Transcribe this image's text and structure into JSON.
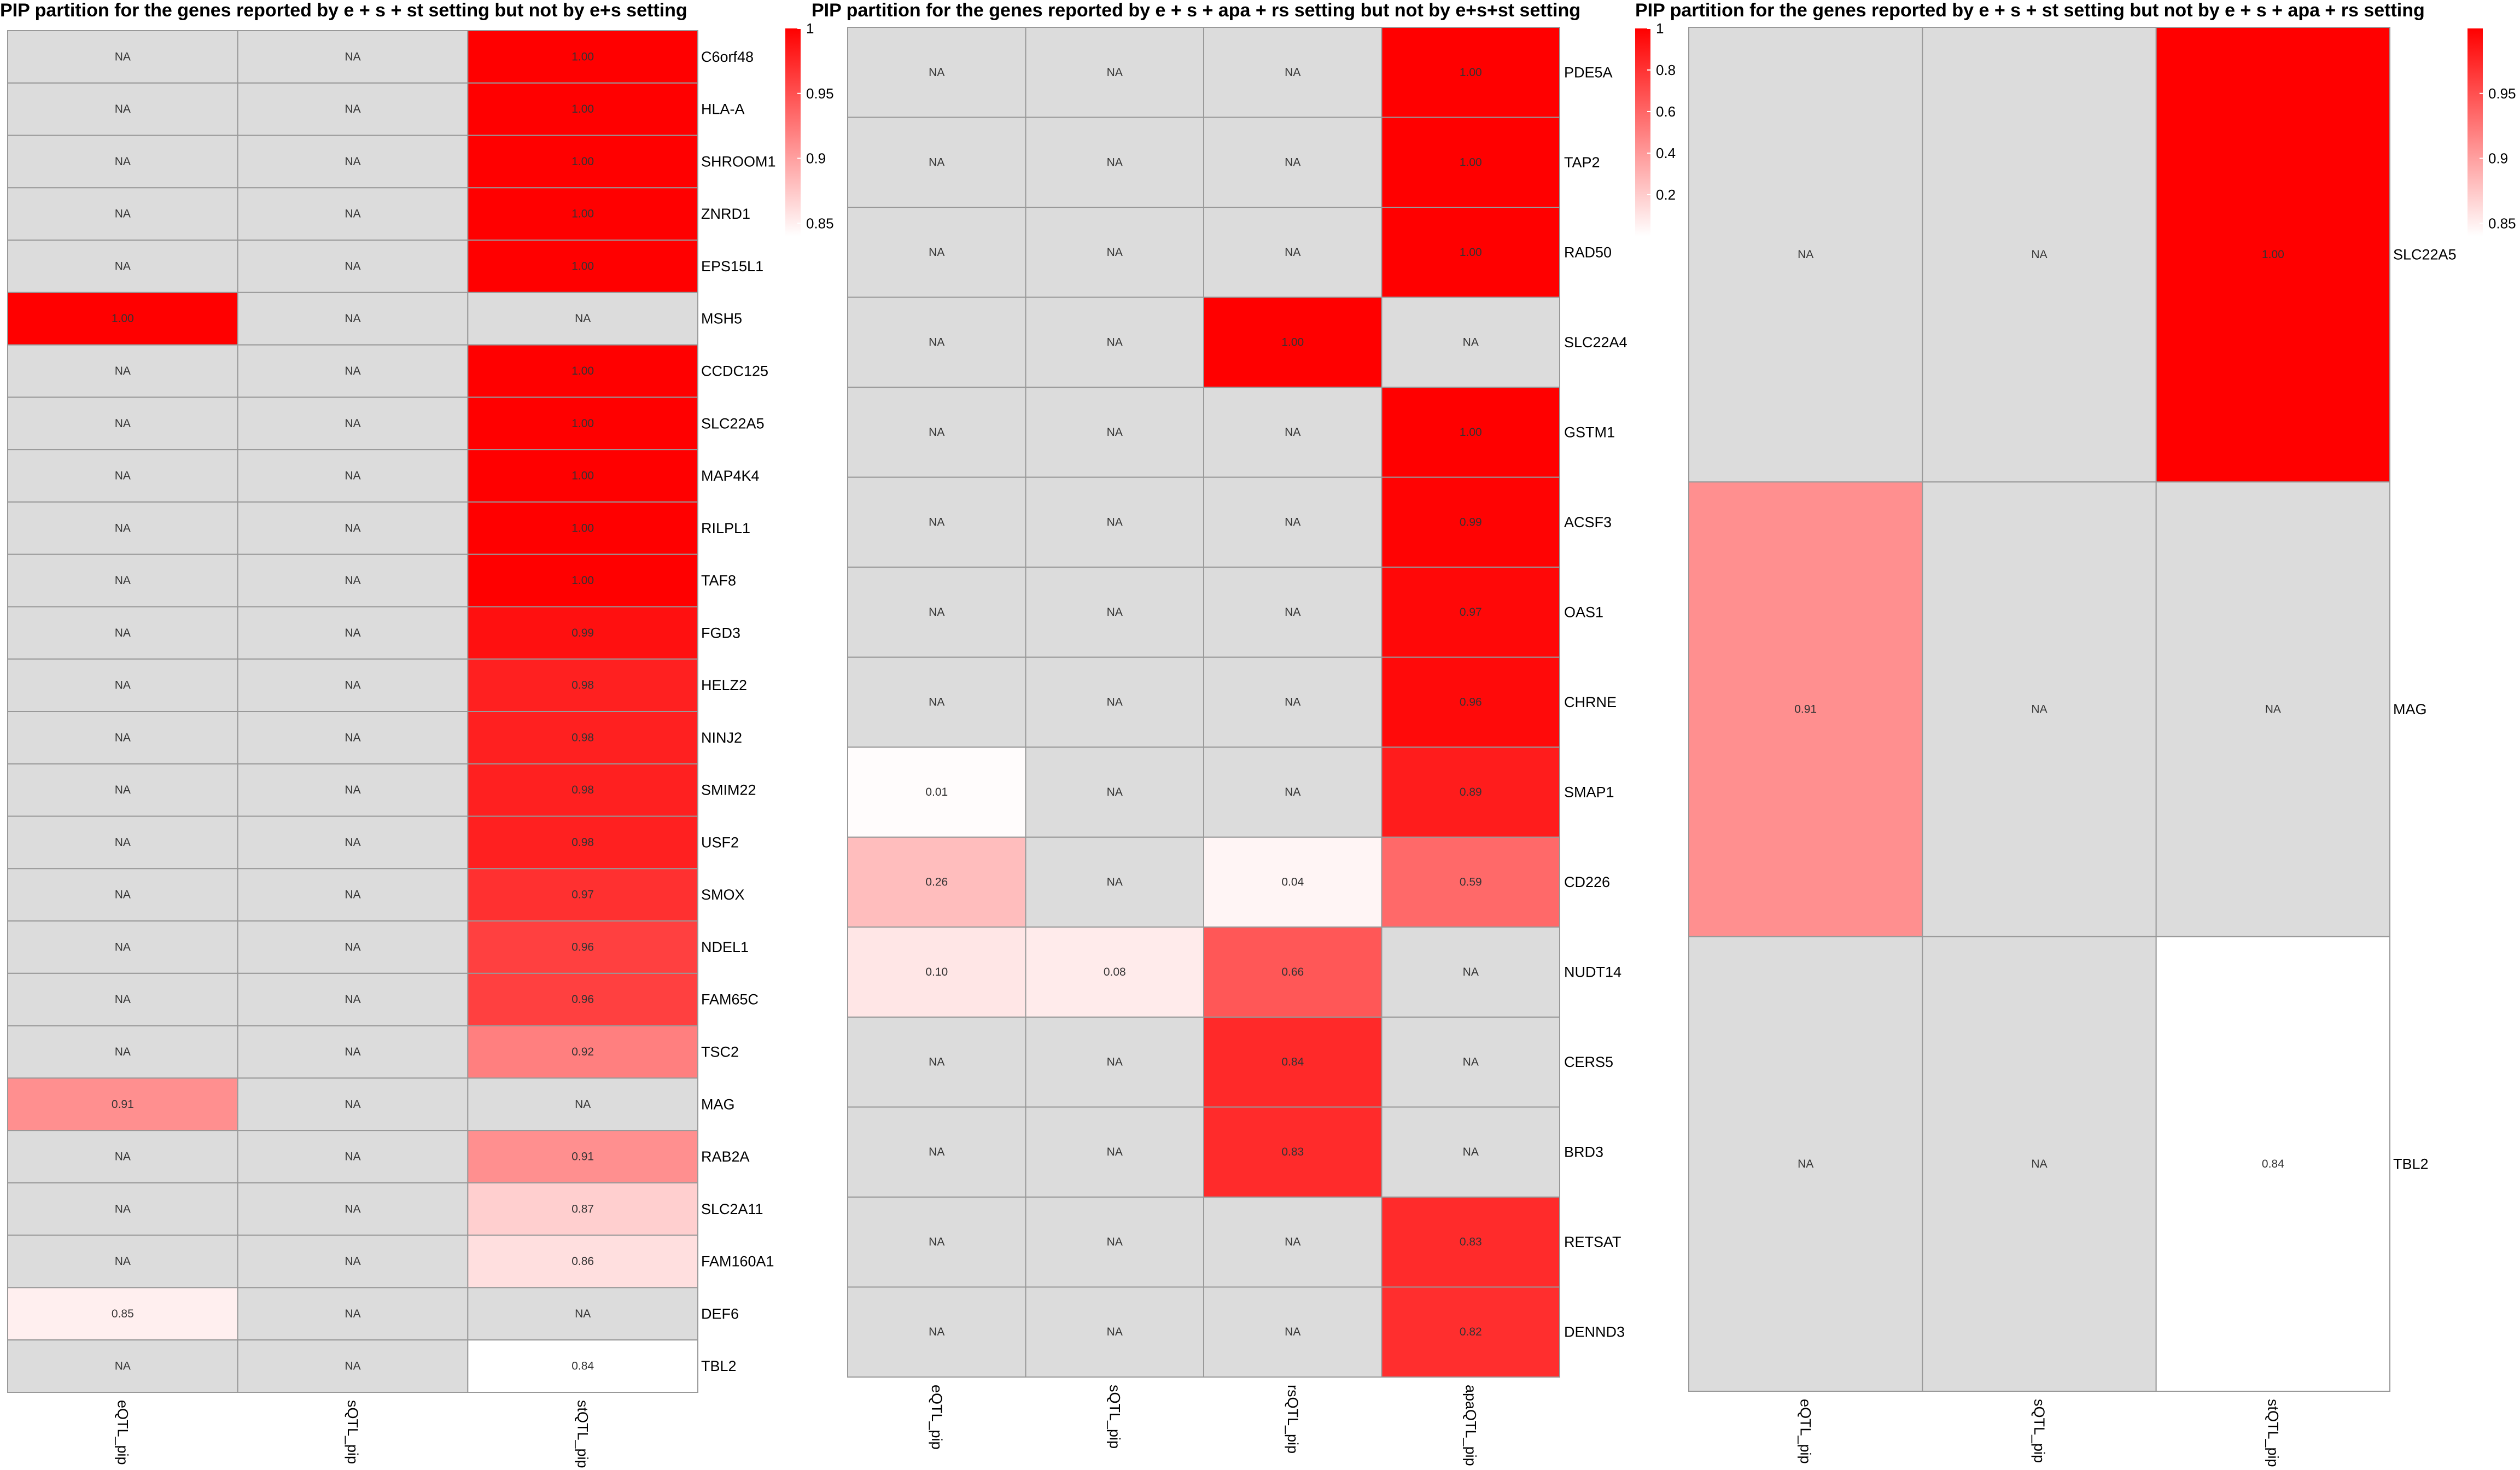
{
  "na_label": "NA",
  "colors": {
    "na": "#dcdcdc",
    "low": "#ffffff",
    "high": "#ff0000",
    "grid": "#999999"
  },
  "chart_data": [
    {
      "type": "heatmap",
      "title": "PIP partition for the genes reported by e + s + st setting but not by e+s setting",
      "columns": [
        "eQTL_pip",
        "sQTL_pip",
        "stQTL_pip"
      ],
      "rows": [
        "C6orf48",
        "HLA-A",
        "SHROOM1",
        "ZNRD1",
        "EPS15L1",
        "MSH5",
        "CCDC125",
        "SLC22A5",
        "MAP4K4",
        "RILPL1",
        "TAF8",
        "FGD3",
        "HELZ2",
        "NINJ2",
        "SMIM22",
        "USF2",
        "SMOX",
        "NDEL1",
        "FAM65C",
        "TSC2",
        "MAG",
        "RAB2A",
        "SLC2A11",
        "FAM160A1",
        "DEF6",
        "TBL2"
      ],
      "values": [
        [
          null,
          null,
          1.0
        ],
        [
          null,
          null,
          1.0
        ],
        [
          null,
          null,
          1.0
        ],
        [
          null,
          null,
          1.0
        ],
        [
          null,
          null,
          1.0
        ],
        [
          1.0,
          null,
          null
        ],
        [
          null,
          null,
          1.0
        ],
        [
          null,
          null,
          1.0
        ],
        [
          null,
          null,
          1.0
        ],
        [
          null,
          null,
          1.0
        ],
        [
          null,
          null,
          1.0
        ],
        [
          null,
          null,
          0.99
        ],
        [
          null,
          null,
          0.98
        ],
        [
          null,
          null,
          0.98
        ],
        [
          null,
          null,
          0.98
        ],
        [
          null,
          null,
          0.98
        ],
        [
          null,
          null,
          0.97
        ],
        [
          null,
          null,
          0.96
        ],
        [
          null,
          null,
          0.96
        ],
        [
          null,
          null,
          0.92
        ],
        [
          0.91,
          null,
          null
        ],
        [
          null,
          null,
          0.91
        ],
        [
          null,
          null,
          0.87
        ],
        [
          null,
          null,
          0.86
        ],
        [
          0.85,
          null,
          null
        ],
        [
          null,
          null,
          0.84
        ]
      ],
      "legend": {
        "min": 0.84,
        "max": 1.0,
        "ticks": [
          0.85,
          0.9,
          0.95,
          1
        ],
        "tick_labels": [
          "0.85",
          "0.9",
          "0.95",
          "1"
        ]
      }
    },
    {
      "type": "heatmap",
      "title": "PIP partition for the genes reported by e + s + apa + rs setting but not by e+s+st setting",
      "columns": [
        "eQTL_pip",
        "sQTL_pip",
        "rsQTL_pip",
        "apaQTL_pip"
      ],
      "rows": [
        "PDE5A",
        "TAP2",
        "RAD50",
        "SLC22A4",
        "GSTM1",
        "ACSF3",
        "OAS1",
        "CHRNE",
        "SMAP1",
        "CD226",
        "NUDT14",
        "CERS5",
        "BRD3",
        "RETSAT",
        "DENND3"
      ],
      "values": [
        [
          null,
          null,
          null,
          1.0
        ],
        [
          null,
          null,
          null,
          1.0
        ],
        [
          null,
          null,
          null,
          1.0
        ],
        [
          null,
          null,
          1.0,
          null
        ],
        [
          null,
          null,
          null,
          1.0
        ],
        [
          null,
          null,
          null,
          0.99
        ],
        [
          null,
          null,
          null,
          0.97
        ],
        [
          null,
          null,
          null,
          0.96
        ],
        [
          0.01,
          null,
          null,
          0.89
        ],
        [
          0.26,
          null,
          0.04,
          0.59
        ],
        [
          0.1,
          0.08,
          0.66,
          null
        ],
        [
          null,
          null,
          0.84,
          null
        ],
        [
          null,
          null,
          0.83,
          null
        ],
        [
          null,
          null,
          null,
          0.83
        ],
        [
          null,
          null,
          null,
          0.82
        ]
      ],
      "legend": {
        "min": 0.0,
        "max": 1.0,
        "ticks": [
          0.2,
          0.4,
          0.6,
          0.8,
          1
        ],
        "tick_labels": [
          "0.2",
          "0.4",
          "0.6",
          "0.8",
          "1"
        ]
      }
    },
    {
      "type": "heatmap",
      "title": "PIP partition for the genes reported by e + s + st setting but not by e + s + apa + rs setting",
      "columns": [
        "eQTL_pip",
        "sQTL_pip",
        "stQTL_pip"
      ],
      "rows": [
        "SLC22A5",
        "MAG",
        "TBL2"
      ],
      "values": [
        [
          null,
          null,
          1.0
        ],
        [
          0.91,
          null,
          null
        ],
        [
          null,
          null,
          0.84
        ]
      ],
      "legend": {
        "min": 0.84,
        "max": 1.0,
        "ticks": [
          0.85,
          0.9,
          0.95
        ],
        "tick_labels": [
          "0.85",
          "0.9",
          "0.95"
        ]
      }
    }
  ]
}
